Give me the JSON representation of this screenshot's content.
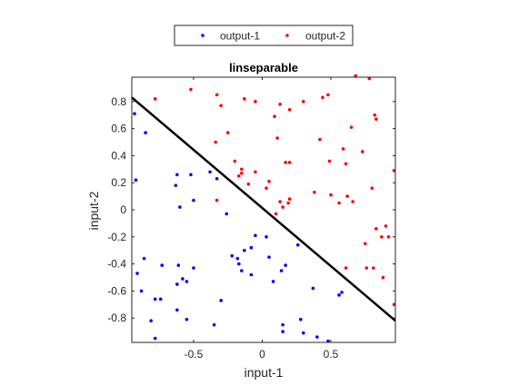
{
  "chart_data": {
    "type": "scatter",
    "title": "linseparable",
    "xlabel": "input-1",
    "ylabel": "input-2",
    "xlim": [
      -0.95,
      0.97
    ],
    "ylim": [
      -0.98,
      0.98
    ],
    "xticks": [
      -0.5,
      0,
      0.5
    ],
    "xtick_labels": [
      "-0.5",
      "0",
      "0.5"
    ],
    "yticks": [
      -0.8,
      -0.6,
      -0.4,
      -0.2,
      0,
      0.2,
      0.4,
      0.6,
      0.8
    ],
    "ytick_labels": [
      "-0.8",
      "-0.6",
      "-0.4",
      "-0.2",
      "0",
      "0.2",
      "0.4",
      "0.6",
      "0.8"
    ],
    "grid": false,
    "legend_position": "top",
    "series": [
      {
        "name": "output-1",
        "color": "#0000ff",
        "points": [
          [
            -0.93,
            0.71
          ],
          [
            -0.85,
            0.57
          ],
          [
            -0.92,
            0.22
          ],
          [
            -0.62,
            0.26
          ],
          [
            -0.63,
            0.18
          ],
          [
            -0.52,
            0.26
          ],
          [
            -0.38,
            0.28
          ],
          [
            -0.33,
            0.23
          ],
          [
            -0.5,
            0.07
          ],
          [
            -0.6,
            0.02
          ],
          [
            -0.26,
            -0.03
          ],
          [
            -0.86,
            -0.36
          ],
          [
            -0.73,
            -0.41
          ],
          [
            -0.61,
            -0.41
          ],
          [
            -0.5,
            -0.43
          ],
          [
            -0.91,
            -0.47
          ],
          [
            -0.58,
            -0.51
          ],
          [
            -0.55,
            -0.53
          ],
          [
            -0.62,
            -0.55
          ],
          [
            -0.88,
            -0.6
          ],
          [
            -0.78,
            -0.66
          ],
          [
            -0.74,
            -0.66
          ],
          [
            -0.81,
            -0.82
          ],
          [
            -0.78,
            -0.95
          ],
          [
            -0.62,
            -0.74
          ],
          [
            -0.55,
            -0.81
          ],
          [
            -0.35,
            -0.85
          ],
          [
            -0.3,
            -0.67
          ],
          [
            -0.22,
            -0.34
          ],
          [
            -0.18,
            -0.36
          ],
          [
            -0.15,
            -0.45
          ],
          [
            -0.13,
            -0.3
          ],
          [
            -0.08,
            -0.28
          ],
          [
            -0.08,
            -0.48
          ],
          [
            -0.17,
            -0.4
          ],
          [
            -0.05,
            -0.19
          ],
          [
            0.03,
            -0.2
          ],
          [
            0.05,
            -0.35
          ],
          [
            0.08,
            -0.53
          ],
          [
            0.14,
            -0.45
          ],
          [
            0.17,
            -0.41
          ],
          [
            0.26,
            -0.26
          ],
          [
            0.15,
            -0.85
          ],
          [
            0.15,
            -0.9
          ],
          [
            0.28,
            -0.81
          ],
          [
            0.3,
            -0.91
          ],
          [
            0.37,
            -0.58
          ],
          [
            0.4,
            -0.94
          ],
          [
            0.48,
            -0.97
          ],
          [
            0.56,
            -0.63
          ],
          [
            0.58,
            -0.61
          ]
        ]
      },
      {
        "name": "output-2",
        "color": "#ff0000",
        "points": [
          [
            -0.78,
            0.82
          ],
          [
            -0.52,
            0.89
          ],
          [
            -0.33,
            0.85
          ],
          [
            -0.3,
            0.77
          ],
          [
            -0.34,
            0.5
          ],
          [
            -0.25,
            0.57
          ],
          [
            -0.33,
            0.07
          ],
          [
            -0.13,
            0.82
          ],
          [
            -0.05,
            0.8
          ],
          [
            -0.2,
            0.36
          ],
          [
            -0.15,
            0.3
          ],
          [
            -0.15,
            0.27
          ],
          [
            -0.1,
            0.19
          ],
          [
            -0.17,
            0.25
          ],
          [
            -0.05,
            0.28
          ],
          [
            0.05,
            0.21
          ],
          [
            0.09,
            0.69
          ],
          [
            0.11,
            0.53
          ],
          [
            0.03,
            0.16
          ],
          [
            0.13,
            0.06
          ],
          [
            0.1,
            -0.03
          ],
          [
            0.17,
            0.35
          ],
          [
            0.2,
            0.35
          ],
          [
            0.19,
            0.05
          ],
          [
            0.2,
            0.08
          ],
          [
            0.15,
            0.02
          ],
          [
            0.13,
            0.78
          ],
          [
            0.2,
            0.74
          ],
          [
            0.3,
            0.8
          ],
          [
            0.38,
            0.13
          ],
          [
            0.42,
            0.52
          ],
          [
            0.44,
            0.83
          ],
          [
            0.48,
            0.85
          ],
          [
            0.5,
            0.11
          ],
          [
            0.49,
            0.36
          ],
          [
            0.56,
            0.05
          ],
          [
            0.59,
            0.45
          ],
          [
            0.61,
            0.34
          ],
          [
            0.62,
            0.1
          ],
          [
            0.61,
            -0.43
          ],
          [
            0.65,
            0.61
          ],
          [
            0.66,
            0.06
          ],
          [
            0.68,
            0.99
          ],
          [
            0.73,
            0.43
          ],
          [
            0.76,
            -0.43
          ],
          [
            0.75,
            -0.25
          ],
          [
            0.78,
            0.97
          ],
          [
            0.8,
            0.16
          ],
          [
            0.81,
            -0.43
          ],
          [
            0.82,
            0.7
          ],
          [
            0.83,
            -0.14
          ],
          [
            0.87,
            -0.2
          ],
          [
            0.9,
            -0.12
          ],
          [
            0.88,
            -0.5
          ],
          [
            0.92,
            -0.2
          ],
          [
            0.96,
            0.29
          ],
          [
            0.96,
            -0.7
          ],
          [
            0.83,
            0.67
          ]
        ]
      }
    ],
    "decision_boundary": {
      "color": "#000000",
      "points": [
        [
          -0.95,
          0.83
        ],
        [
          0.97,
          -0.82
        ]
      ]
    }
  }
}
